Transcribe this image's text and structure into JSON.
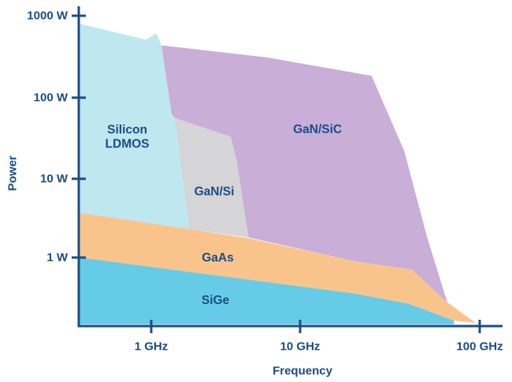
{
  "chart_data": {
    "type": "area",
    "title": "",
    "xlabel": "Frequency",
    "ylabel": "Power",
    "x_scale": "log",
    "y_scale": "log",
    "grid": false,
    "legend": "labels-inside-regions",
    "x_range_ghz": [
      0.33,
      135
    ],
    "y_range_w": [
      0.14,
      1200
    ],
    "axis_color": "#1a4c86",
    "text_color": "#1a4c86",
    "x_ticks": [
      {
        "label": "1 GHz",
        "ghz": 1
      },
      {
        "label": "10 GHz",
        "ghz": 10
      },
      {
        "label": "100 GHz",
        "ghz": 100
      }
    ],
    "y_ticks": [
      {
        "label": "1000 W",
        "watts": 1000
      },
      {
        "label": "100 W",
        "watts": 100
      },
      {
        "label": "10 W",
        "watts": 10
      },
      {
        "label": "1 W",
        "watts": 1
      }
    ],
    "regions": [
      {
        "name": "GaN/SiC",
        "label_lines": [
          "GaN/SiC"
        ],
        "color": "#c9aed8",
        "label_at_ghz_w": [
          12.5,
          41
        ],
        "points_ghz_w": [
          [
            1.17,
            435
          ],
          [
            6,
            310
          ],
          [
            25,
            185
          ],
          [
            38,
            22
          ],
          [
            51,
            1.8
          ],
          [
            66,
            0.27
          ],
          [
            42,
            0.7
          ],
          [
            20,
            0.9
          ],
          [
            4.5,
            1.8
          ],
          [
            3.73,
            17.4
          ],
          [
            3.42,
            33
          ],
          [
            1.44,
            56
          ],
          [
            1.37,
            63
          ],
          [
            1.29,
            132
          ]
        ]
      },
      {
        "name": "GaN/Si",
        "label_lines": [
          "GaN/Si"
        ],
        "color": "#d5d4d6",
        "label_at_ghz_w": [
          2.65,
          6.9
        ],
        "points_ghz_w": [
          [
            1.44,
            56
          ],
          [
            3.42,
            33
          ],
          [
            3.73,
            17.4
          ],
          [
            4.5,
            1.8
          ],
          [
            1.8,
            2.3
          ]
        ]
      },
      {
        "name": "Silicon LDMOS",
        "label_lines": [
          "Silicon",
          "LDMOS"
        ],
        "color": "#bee7f0",
        "label_at_ghz_w": [
          0.69,
          33
        ],
        "points_ghz_w": [
          [
            0.33,
            800
          ],
          [
            0.92,
            510
          ],
          [
            1.08,
            610
          ],
          [
            1.17,
            435
          ],
          [
            1.29,
            132
          ],
          [
            1.37,
            63
          ],
          [
            1.44,
            56
          ],
          [
            1.8,
            2.3
          ],
          [
            0.33,
            3.7
          ]
        ]
      },
      {
        "name": "GaAs",
        "label_lines": [
          "GaAs"
        ],
        "color": "#f9c48c",
        "label_at_ghz_w": [
          2.8,
          1.0
        ],
        "points_ghz_w": [
          [
            0.33,
            3.7
          ],
          [
            1.8,
            2.3
          ],
          [
            4.6,
            1.75
          ],
          [
            20,
            0.9
          ],
          [
            42,
            0.7
          ],
          [
            66,
            0.27
          ],
          [
            95,
            0.148
          ],
          [
            72,
            0.158
          ],
          [
            40,
            0.26
          ],
          [
            20,
            0.35
          ],
          [
            0.33,
            1.0
          ]
        ]
      },
      {
        "name": "SiGe",
        "label_lines": [
          "SiGe"
        ],
        "color": "#66cbe6",
        "label_at_ghz_w": [
          2.7,
          0.29
        ],
        "points_ghz_w": [
          [
            0.33,
            1.0
          ],
          [
            20,
            0.35
          ],
          [
            40,
            0.26
          ],
          [
            72,
            0.158
          ],
          [
            72,
            0.142
          ],
          [
            0.33,
            0.142
          ]
        ]
      }
    ]
  }
}
